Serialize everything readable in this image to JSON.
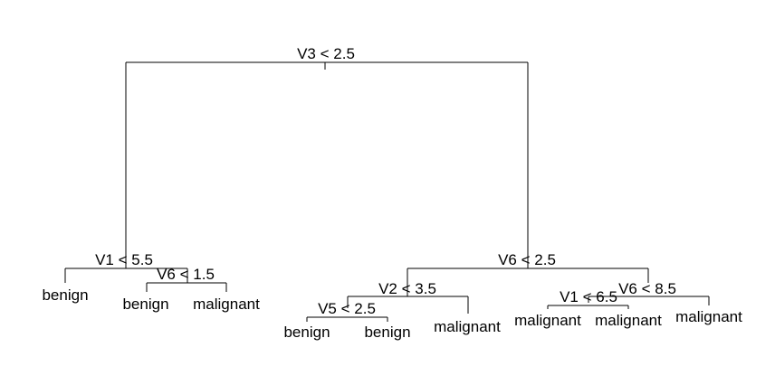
{
  "tree": {
    "splits": {
      "root": "V3 < 2.5",
      "left": "V1 < 5.5",
      "left_right": "V6 < 1.5",
      "right": "V6 < 2.5",
      "right_left": "V2 < 3.5",
      "right_left_left": "V5 < 2.5",
      "right_right": "V6 < 8.5",
      "right_right_left": "V1 < 6.5"
    },
    "leaves": {
      "l1": "benign",
      "l2": "benign",
      "l3": "malignant",
      "l4": "benign",
      "l5": "benign",
      "l6": "malignant",
      "l7": "malignant",
      "l8": "malignant",
      "l9": "malignant"
    }
  }
}
